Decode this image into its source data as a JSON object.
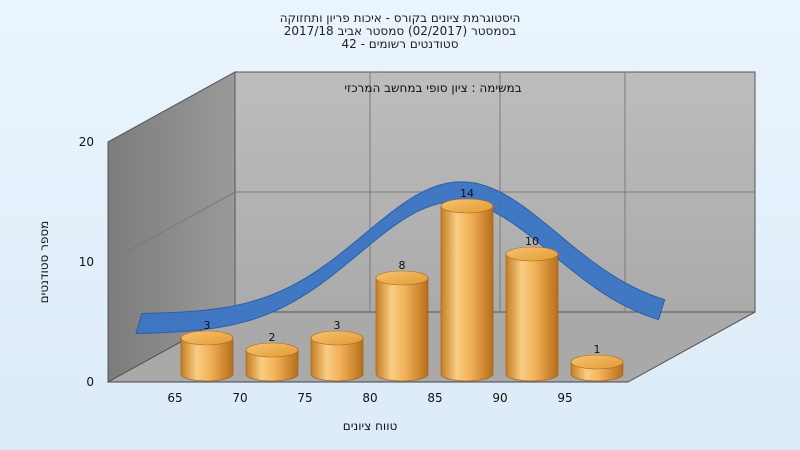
{
  "chart_data": {
    "type": "bar",
    "title_lines": [
      "היסטוגרמת ציונים בקורס - איכות פריון ותחזוקה",
      "בסמסטר (02/2017) סמסטר אביב 2017/18",
      "סטודנטים רשומים - 42"
    ],
    "subtitle": "במשימה : ציון סופי במחשב המרכזי",
    "xlabel": "טווח ציונים",
    "ylabel": "מספר סטודנטים",
    "x_ticks": [
      "65",
      "70",
      "75",
      "80",
      "85",
      "90",
      "95"
    ],
    "categories": [
      "65",
      "70",
      "75",
      "80",
      "85",
      "90",
      "95"
    ],
    "values": [
      3,
      2,
      3,
      8,
      14,
      10,
      1
    ],
    "ylim": [
      0,
      20
    ],
    "y_ticks": [
      "0",
      "10",
      "20"
    ],
    "grid": true,
    "curve": "normal-distribution",
    "colors": {
      "bar": "#f0a945",
      "curve": "#3a75c4",
      "back_wall": "#b4b4b4",
      "side_wall": "#8e8e8e",
      "floor": "#a8a8a8"
    }
  }
}
